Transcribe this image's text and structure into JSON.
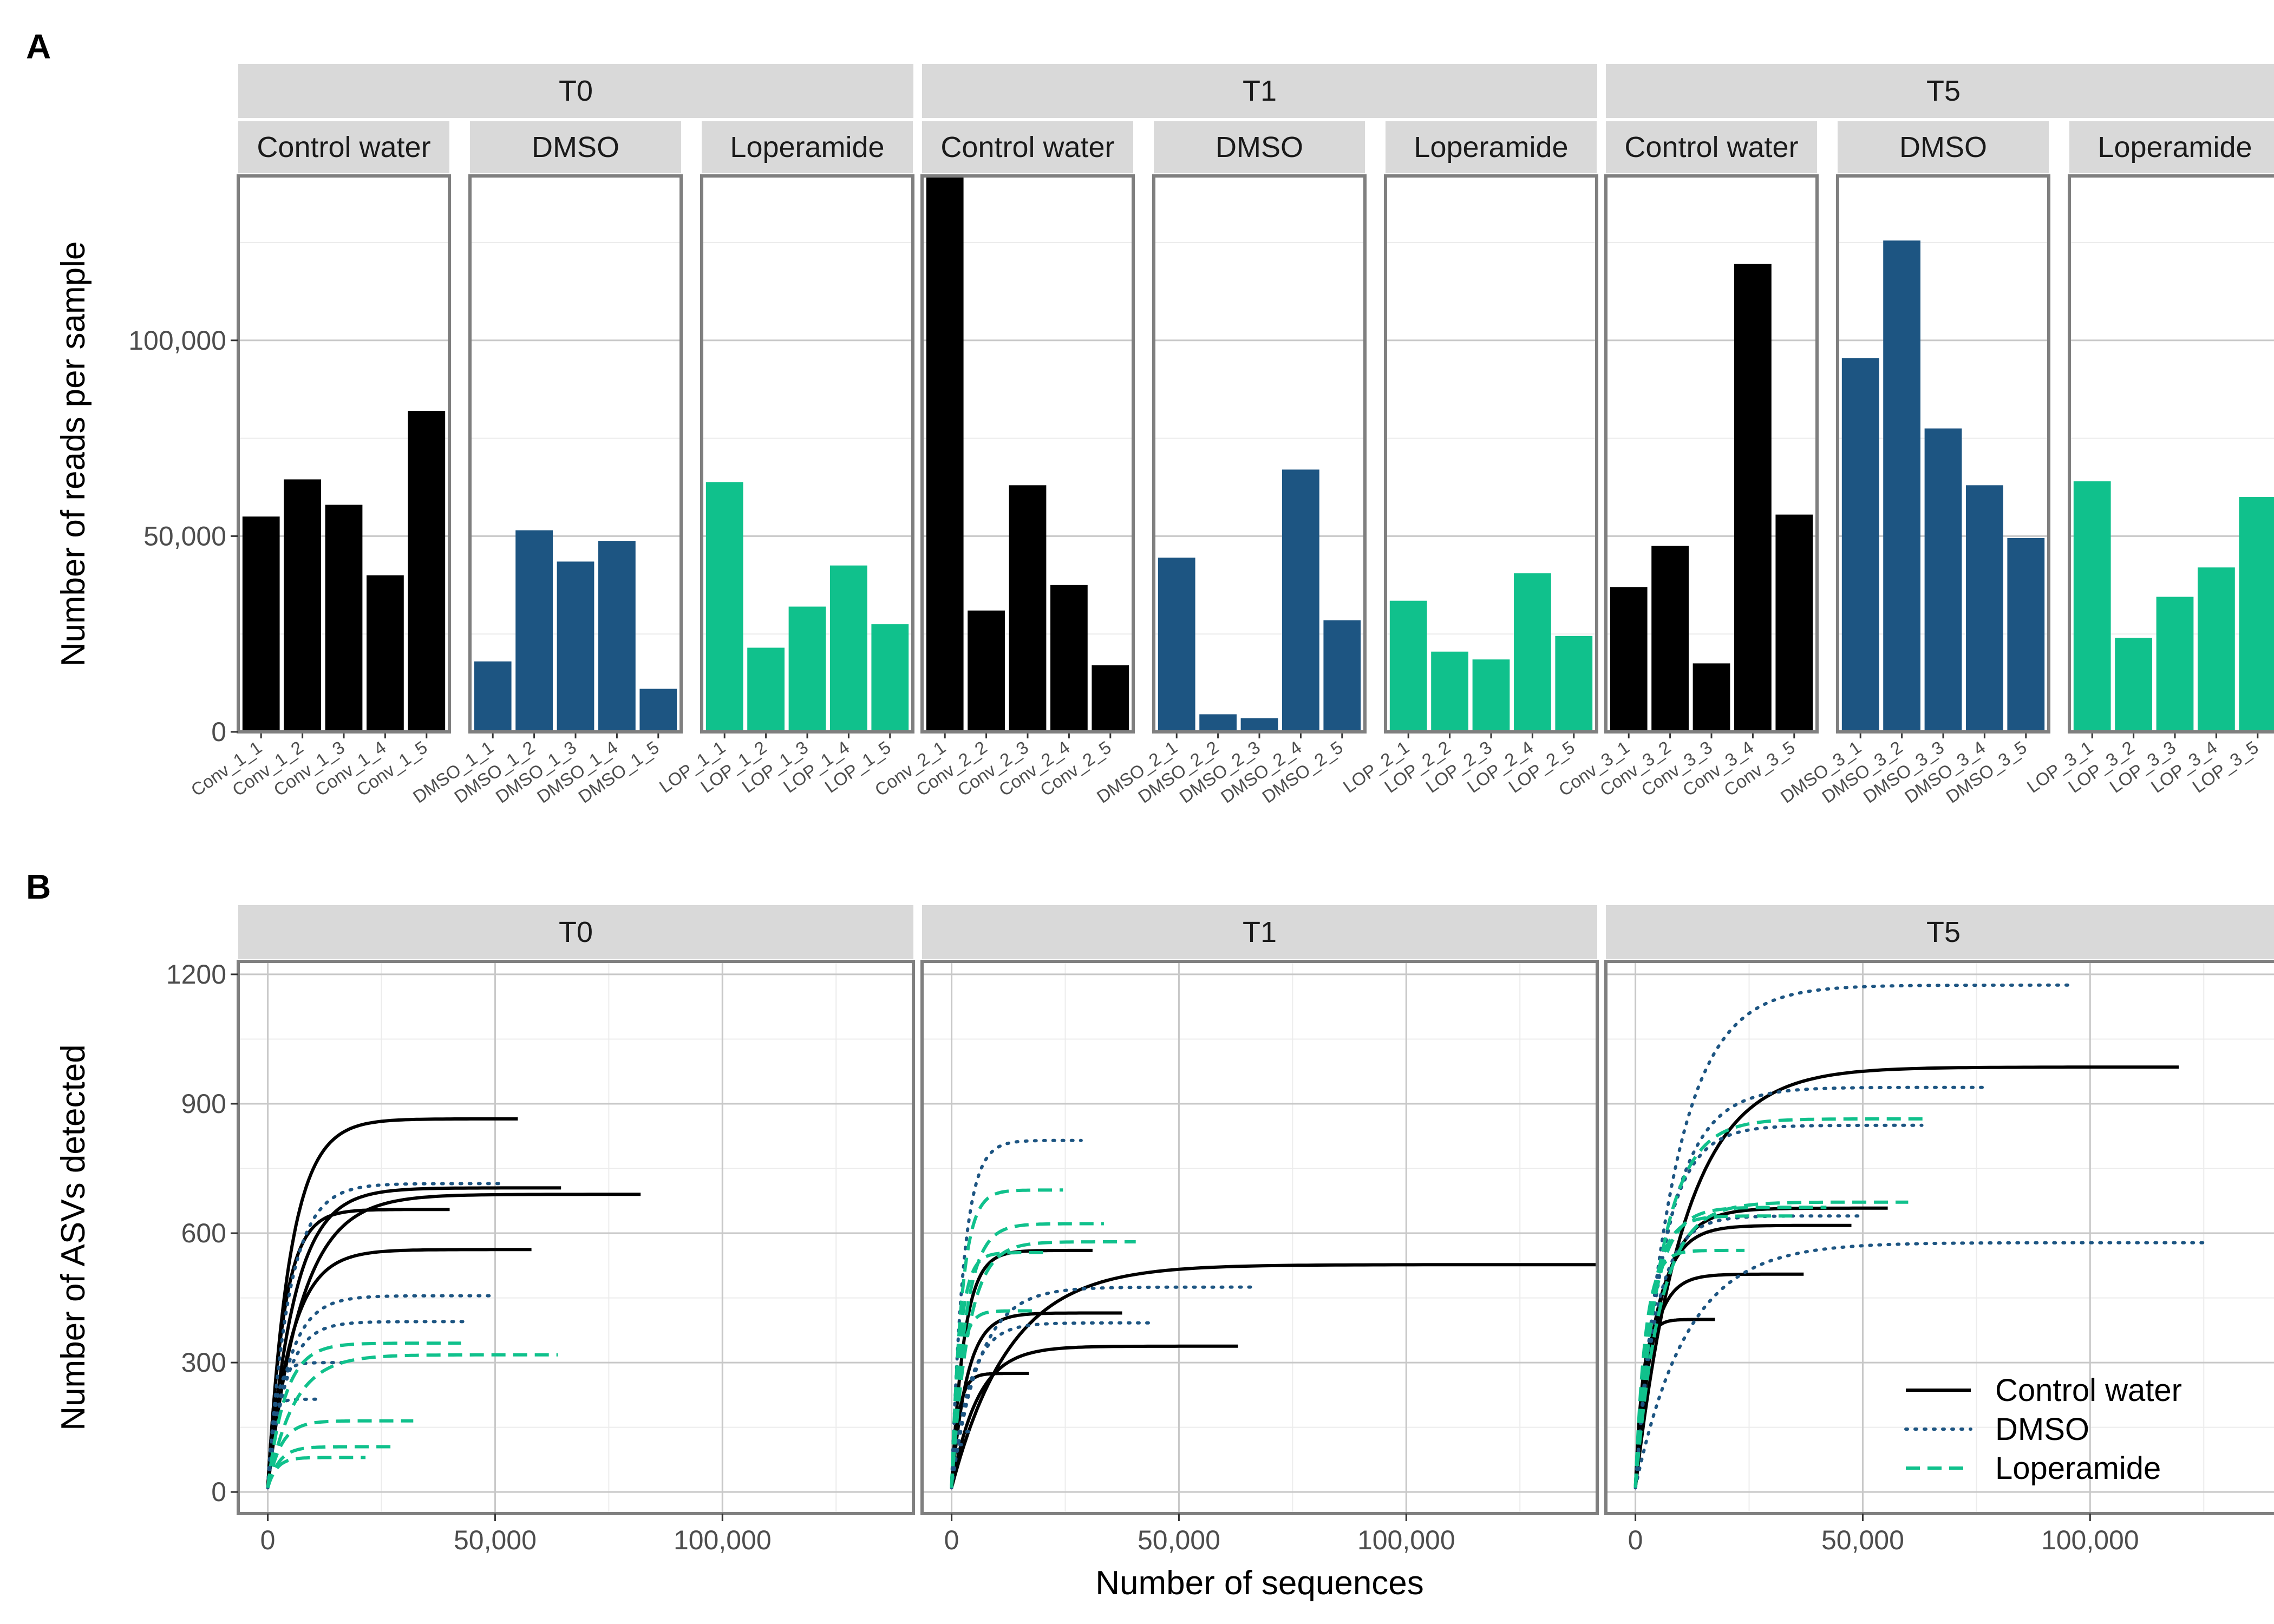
{
  "panel_labels": {
    "a": "A",
    "b": "B"
  },
  "colors": {
    "Control water": "#000000",
    "DMSO": "#1d5582",
    "Loperamide": "#10c18c",
    "strip": "#d9d9d9",
    "grid_major": "#c8c8c8",
    "grid_minor": "#ececec",
    "frame": "#7f7f7f"
  },
  "chart_data": [
    {
      "type": "bar",
      "ylabel": "Number of reads per sample",
      "xlabel": "",
      "ylim": [
        0,
        142000
      ],
      "yticks": [
        0,
        50000,
        100000
      ],
      "ytick_labels": [
        "0",
        "50,000",
        "100,000"
      ],
      "grid": true,
      "facets": [
        {
          "time": "T0",
          "groups": [
            {
              "treatment": "Control water",
              "samples": [
                "Conv_1_1",
                "Conv_1_2",
                "Conv_1_3",
                "Conv_1_4",
                "Conv_1_5"
              ],
              "values": [
                55000,
                64500,
                58000,
                40000,
                82000
              ]
            },
            {
              "treatment": "DMSO",
              "samples": [
                "DMSO_1_1",
                "DMSO_1_2",
                "DMSO_1_3",
                "DMSO_1_4",
                "DMSO_1_5"
              ],
              "values": [
                18000,
                51500,
                43500,
                48800,
                11000
              ]
            },
            {
              "treatment": "Loperamide",
              "samples": [
                "LOP_1_1",
                "LOP_1_2",
                "LOP_1_3",
                "LOP_1_4",
                "LOP_1_5"
              ],
              "values": [
                63800,
                21500,
                32000,
                42500,
                27500
              ]
            }
          ]
        },
        {
          "time": "T1",
          "groups": [
            {
              "treatment": "Control water",
              "samples": [
                "Conv_2_1",
                "Conv_2_2",
                "Conv_2_3",
                "Conv_2_4",
                "Conv_2_5"
              ],
              "values": [
                142000,
                31000,
                63000,
                37500,
                17000
              ]
            },
            {
              "treatment": "DMSO",
              "samples": [
                "DMSO_2_1",
                "DMSO_2_2",
                "DMSO_2_3",
                "DMSO_2_4",
                "DMSO_2_5"
              ],
              "values": [
                44500,
                4500,
                3500,
                67000,
                28500
              ]
            },
            {
              "treatment": "Loperamide",
              "samples": [
                "LOP_2_1",
                "LOP_2_2",
                "LOP_2_3",
                "LOP_2_4",
                "LOP_2_5"
              ],
              "values": [
                33500,
                20500,
                18500,
                40500,
                24500
              ]
            }
          ]
        },
        {
          "time": "T5",
          "groups": [
            {
              "treatment": "Control water",
              "samples": [
                "Conv_3_1",
                "Conv_3_2",
                "Conv_3_3",
                "Conv_3_4",
                "Conv_3_5"
              ],
              "values": [
                37000,
                47500,
                17500,
                119500,
                55500
              ]
            },
            {
              "treatment": "DMSO",
              "samples": [
                "DMSO_3_1",
                "DMSO_3_2",
                "DMSO_3_3",
                "DMSO_3_4",
                "DMSO_3_5"
              ],
              "values": [
                95500,
                125500,
                77500,
                63000,
                49500
              ]
            },
            {
              "treatment": "Loperamide",
              "samples": [
                "LOP_3_1",
                "LOP_3_2",
                "LOP_3_3",
                "LOP_3_4",
                "LOP_3_5"
              ],
              "values": [
                64000,
                24000,
                34500,
                42000,
                60000
              ]
            }
          ]
        }
      ]
    },
    {
      "type": "line",
      "xlabel": "Number of sequences",
      "ylabel": "Number of ASVs detected",
      "xlim": [
        -6500,
        142000
      ],
      "ylim": [
        -50,
        1230
      ],
      "xticks": [
        0,
        50000,
        100000
      ],
      "xtick_labels": [
        "0",
        "50,000",
        "100,000"
      ],
      "yticks": [
        0,
        300,
        600,
        900,
        1200
      ],
      "ytick_labels": [
        "0",
        "300",
        "600",
        "900",
        "1200"
      ],
      "grid": true,
      "legend": {
        "position": "bottom-right inside",
        "entries": [
          {
            "label": "Control water",
            "style": "solid"
          },
          {
            "label": "DMSO",
            "style": "dotted"
          },
          {
            "label": "Loperamide",
            "style": "dashed"
          }
        ]
      },
      "facets": [
        {
          "time": "T0",
          "curves": [
            {
              "treatment": "Control water",
              "max_x": 55000,
              "max_y": 865
            },
            {
              "treatment": "Control water",
              "max_x": 64500,
              "max_y": 705
            },
            {
              "treatment": "Control water",
              "max_x": 82000,
              "max_y": 690
            },
            {
              "treatment": "Control water",
              "max_x": 40000,
              "max_y": 655
            },
            {
              "treatment": "Control water",
              "max_x": 58000,
              "max_y": 562
            },
            {
              "treatment": "DMSO",
              "max_x": 51500,
              "max_y": 715
            },
            {
              "treatment": "DMSO",
              "max_x": 48800,
              "max_y": 455
            },
            {
              "treatment": "DMSO",
              "max_x": 43500,
              "max_y": 395
            },
            {
              "treatment": "DMSO",
              "max_x": 18000,
              "max_y": 300
            },
            {
              "treatment": "DMSO",
              "max_x": 11000,
              "max_y": 215
            },
            {
              "treatment": "Loperamide",
              "max_x": 42500,
              "max_y": 345
            },
            {
              "treatment": "Loperamide",
              "max_x": 63800,
              "max_y": 318
            },
            {
              "treatment": "Loperamide",
              "max_x": 32000,
              "max_y": 165
            },
            {
              "treatment": "Loperamide",
              "max_x": 27500,
              "max_y": 105
            },
            {
              "treatment": "Loperamide",
              "max_x": 21500,
              "max_y": 80
            }
          ]
        },
        {
          "time": "T1",
          "curves": [
            {
              "treatment": "Control water",
              "max_x": 142000,
              "max_y": 527
            },
            {
              "treatment": "Control water",
              "max_x": 31000,
              "max_y": 560
            },
            {
              "treatment": "Control water",
              "max_x": 37500,
              "max_y": 415
            },
            {
              "treatment": "Control water",
              "max_x": 63000,
              "max_y": 338
            },
            {
              "treatment": "Control water",
              "max_x": 17000,
              "max_y": 275
            },
            {
              "treatment": "DMSO",
              "max_x": 28500,
              "max_y": 815
            },
            {
              "treatment": "DMSO",
              "max_x": 67000,
              "max_y": 475
            },
            {
              "treatment": "DMSO",
              "max_x": 44500,
              "max_y": 392
            },
            {
              "treatment": "DMSO",
              "max_x": 4500,
              "max_y": 140
            },
            {
              "treatment": "DMSO",
              "max_x": 3500,
              "max_y": 110
            },
            {
              "treatment": "Loperamide",
              "max_x": 24500,
              "max_y": 700
            },
            {
              "treatment": "Loperamide",
              "max_x": 33500,
              "max_y": 622
            },
            {
              "treatment": "Loperamide",
              "max_x": 40500,
              "max_y": 580
            },
            {
              "treatment": "Loperamide",
              "max_x": 20500,
              "max_y": 555
            },
            {
              "treatment": "Loperamide",
              "max_x": 18500,
              "max_y": 420
            }
          ]
        },
        {
          "time": "T5",
          "curves": [
            {
              "treatment": "Control water",
              "max_x": 119500,
              "max_y": 985
            },
            {
              "treatment": "Control water",
              "max_x": 55500,
              "max_y": 658
            },
            {
              "treatment": "Control water",
              "max_x": 47500,
              "max_y": 618
            },
            {
              "treatment": "Control water",
              "max_x": 37000,
              "max_y": 505
            },
            {
              "treatment": "Control water",
              "max_x": 17500,
              "max_y": 400
            },
            {
              "treatment": "DMSO",
              "max_x": 95500,
              "max_y": 1175
            },
            {
              "treatment": "DMSO",
              "max_x": 77500,
              "max_y": 938
            },
            {
              "treatment": "DMSO",
              "max_x": 63000,
              "max_y": 850
            },
            {
              "treatment": "DMSO",
              "max_x": 49500,
              "max_y": 640
            },
            {
              "treatment": "DMSO",
              "max_x": 125500,
              "max_y": 578
            },
            {
              "treatment": "Loperamide",
              "max_x": 64000,
              "max_y": 865
            },
            {
              "treatment": "Loperamide",
              "max_x": 60000,
              "max_y": 672
            },
            {
              "treatment": "Loperamide",
              "max_x": 42000,
              "max_y": 660
            },
            {
              "treatment": "Loperamide",
              "max_x": 34500,
              "max_y": 640
            },
            {
              "treatment": "Loperamide",
              "max_x": 24000,
              "max_y": 560
            }
          ]
        }
      ]
    }
  ]
}
